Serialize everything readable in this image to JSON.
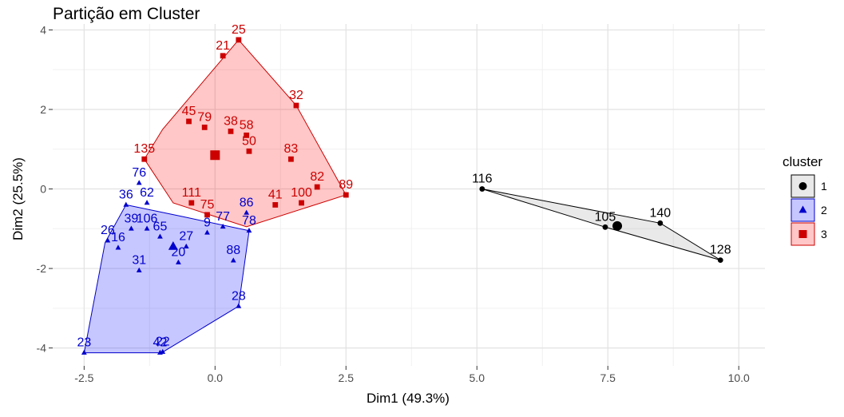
{
  "chart_data": {
    "type": "scatter",
    "title": "Partição em Cluster",
    "xlabel": "Dim1 (49.3%)",
    "ylabel": "Dim2 (25.5%)",
    "xlim": [
      -3.1,
      10.5
    ],
    "ylim": [
      -4.45,
      4.15
    ],
    "x_ticks": [
      -2.5,
      0.0,
      2.5,
      5.0,
      7.5,
      10.0
    ],
    "x_tick_labels": [
      "-2.5",
      "0.0",
      "2.5",
      "5.0",
      "7.5",
      "10.0"
    ],
    "y_ticks": [
      -4,
      -2,
      0,
      2,
      4
    ],
    "y_tick_labels": [
      "-4",
      "-2",
      "0",
      "2",
      "4"
    ],
    "grid": true,
    "legend": {
      "title": "cluster",
      "position": "right",
      "labels": [
        "1",
        "2",
        "3"
      ]
    },
    "series": [
      {
        "name": "1",
        "color": "#000000",
        "fill": "#999999",
        "marker": "circle",
        "centroid": [
          7.68,
          -0.93
        ],
        "hull": [
          [
            5.1,
            0.0
          ],
          [
            8.5,
            -0.86
          ],
          [
            9.65,
            -1.79
          ],
          [
            7.45,
            -0.96
          ]
        ],
        "points": [
          {
            "label": "116",
            "x": 5.1,
            "y": 0.0
          },
          {
            "label": "105",
            "x": 7.45,
            "y": -0.96
          },
          {
            "label": "140",
            "x": 8.5,
            "y": -0.86
          },
          {
            "label": "128",
            "x": 9.65,
            "y": -1.79
          }
        ]
      },
      {
        "name": "2",
        "color": "#0000cc",
        "fill": "#0000ff",
        "marker": "triangle",
        "centroid": [
          -0.8,
          -1.45
        ],
        "hull": [
          [
            -1.7,
            -0.4
          ],
          [
            -0.6,
            -0.7
          ],
          [
            0.65,
            -1.05
          ],
          [
            0.45,
            -2.95
          ],
          [
            -1.02,
            -4.12
          ],
          [
            -2.5,
            -4.12
          ],
          [
            -2.1,
            -1.35
          ]
        ],
        "points": [
          {
            "label": "23",
            "x": -2.5,
            "y": -4.12
          },
          {
            "label": "22",
            "x": -1.0,
            "y": -4.1
          },
          {
            "label": "42",
            "x": -1.05,
            "y": -4.12
          },
          {
            "label": "28",
            "x": 0.45,
            "y": -2.95
          },
          {
            "label": "26",
            "x": -2.05,
            "y": -1.3
          },
          {
            "label": "16",
            "x": -1.85,
            "y": -1.48
          },
          {
            "label": "31",
            "x": -1.45,
            "y": -2.05
          },
          {
            "label": "20",
            "x": -0.7,
            "y": -1.85
          },
          {
            "label": "27",
            "x": -0.55,
            "y": -1.45
          },
          {
            "label": "88",
            "x": 0.35,
            "y": -1.8
          },
          {
            "label": "36",
            "x": -1.7,
            "y": -0.4
          },
          {
            "label": "39",
            "x": -1.6,
            "y": -1.0
          },
          {
            "label": "65",
            "x": -1.05,
            "y": -1.2
          },
          {
            "label": "106",
            "x": -1.3,
            "y": -1.0
          },
          {
            "label": "9",
            "x": -0.15,
            "y": -1.1
          },
          {
            "label": "76",
            "x": -1.45,
            "y": 0.15
          },
          {
            "label": "62",
            "x": -1.3,
            "y": -0.35
          },
          {
            "label": "77",
            "x": 0.15,
            "y": -0.95
          },
          {
            "label": "86",
            "x": 0.6,
            "y": -0.6
          },
          {
            "label": "78",
            "x": 0.65,
            "y": -1.05
          }
        ]
      },
      {
        "name": "3",
        "color": "#cc0000",
        "fill": "#ff0000",
        "marker": "square",
        "centroid": [
          0.0,
          0.85
        ],
        "hull": [
          [
            -1.35,
            0.75
          ],
          [
            -1.0,
            1.5
          ],
          [
            0.45,
            3.75
          ],
          [
            1.55,
            2.1
          ],
          [
            2.5,
            -0.15
          ],
          [
            0.6,
            -0.95
          ],
          [
            -0.8,
            -0.35
          ]
        ],
        "points": [
          {
            "label": "25",
            "x": 0.45,
            "y": 3.75
          },
          {
            "label": "21",
            "x": 0.15,
            "y": 3.35
          },
          {
            "label": "32",
            "x": 1.55,
            "y": 2.1
          },
          {
            "label": "89",
            "x": 2.5,
            "y": -0.15
          },
          {
            "label": "82",
            "x": 1.95,
            "y": 0.05
          },
          {
            "label": "100",
            "x": 1.65,
            "y": -0.35
          },
          {
            "label": "41",
            "x": 1.15,
            "y": -0.4
          },
          {
            "label": "83",
            "x": 1.45,
            "y": 0.75
          },
          {
            "label": "58",
            "x": 0.6,
            "y": 1.35
          },
          {
            "label": "38",
            "x": 0.3,
            "y": 1.45
          },
          {
            "label": "50",
            "x": 0.65,
            "y": 0.95
          },
          {
            "label": "135",
            "x": -1.35,
            "y": 0.75
          },
          {
            "label": "45",
            "x": -0.5,
            "y": 1.7
          },
          {
            "label": "79",
            "x": -0.2,
            "y": 1.55
          },
          {
            "label": "75",
            "x": -0.15,
            "y": -0.65
          },
          {
            "label": "111",
            "x": -0.45,
            "y": -0.35
          }
        ]
      }
    ]
  }
}
